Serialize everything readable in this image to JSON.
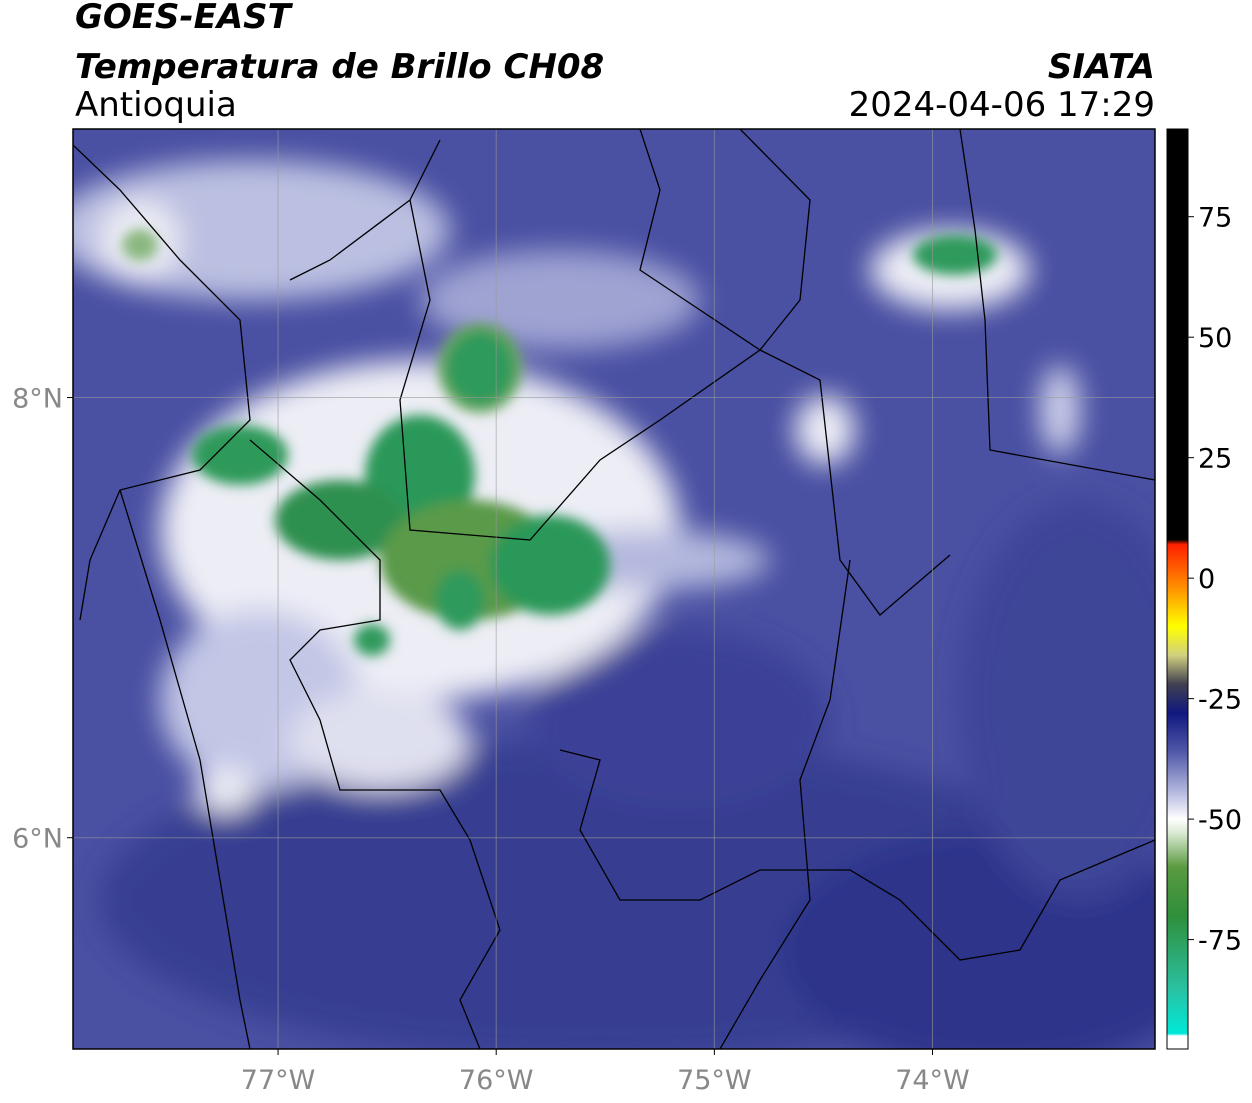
{
  "chart_data": {
    "type": "map",
    "title": "GOES-EAST",
    "subtitle": "Temperatura de Brillo CH08",
    "region": "Antioquia",
    "source": "SIATA",
    "timestamp": "2024-04-06 17:29",
    "xlim": [
      -77.94,
      -72.98
    ],
    "ylim": [
      5.04,
      9.22
    ],
    "xticks": [
      {
        "value": -77,
        "label": "77°W"
      },
      {
        "value": -76,
        "label": "76°W"
      },
      {
        "value": -75,
        "label": "75°W"
      },
      {
        "value": -74,
        "label": "74°W"
      }
    ],
    "yticks": [
      {
        "value": 6,
        "label": "6°N"
      },
      {
        "value": 8,
        "label": "8°N"
      }
    ],
    "grid": true,
    "clim": [
      -97.7,
      93.2
    ],
    "cticks": [
      75,
      50,
      25,
      0,
      -25,
      -50,
      -75
    ],
    "colormap": [
      [
        -97.7,
        "#ffffff"
      ],
      [
        -95,
        "#ffffff"
      ],
      [
        -94.5,
        "#00e8d8"
      ],
      [
        -85,
        "#2ac0a0"
      ],
      [
        -70,
        "#2f8f3a"
      ],
      [
        -60,
        "#5a9a40"
      ],
      [
        -53,
        "#d8e8d0"
      ],
      [
        -50,
        "#ffffff"
      ],
      [
        -44,
        "#b0b4dc"
      ],
      [
        -36,
        "#5058a8"
      ],
      [
        -28,
        "#101880"
      ],
      [
        -22,
        "#404050"
      ],
      [
        -16,
        "#d0d080"
      ],
      [
        -10,
        "#ffff00"
      ],
      [
        -2,
        "#ff9000"
      ],
      [
        7,
        "#ff2000"
      ],
      [
        8,
        "#000000"
      ],
      [
        93.2,
        "#000000"
      ]
    ]
  }
}
